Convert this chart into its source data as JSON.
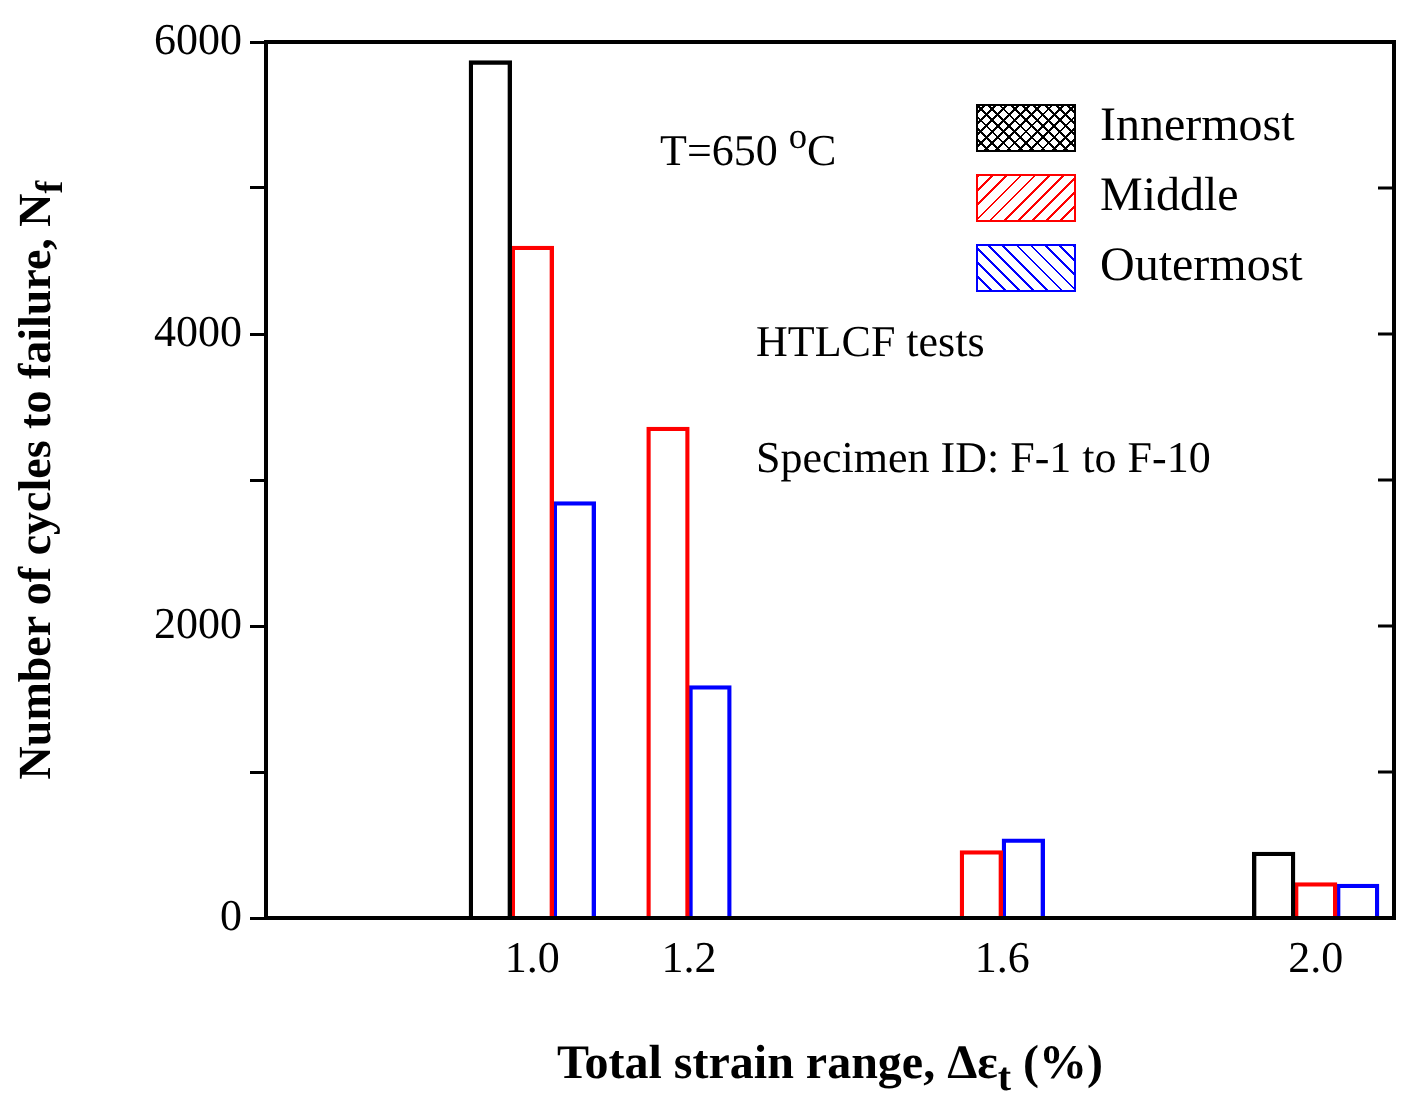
{
  "chart_data": {
    "type": "bar",
    "xlabel": "Total strain range, Δε$_{t}$ (%)",
    "ylabel": "Number of cycles to failure, N$_{f}$",
    "x": [
      1.0,
      1.2,
      1.6,
      2.0
    ],
    "series": [
      {
        "name": "Innermost",
        "color": "#000000",
        "values": [
          5870,
          null,
          null,
          450
        ]
      },
      {
        "name": "Middle",
        "color": "#ff0000",
        "values": [
          4600,
          3360,
          460,
          240
        ]
      },
      {
        "name": "Outermost",
        "color": "#0000ff",
        "values": [
          2850,
          1590,
          540,
          230
        ]
      }
    ],
    "xlim": [
      0.66,
      2.1
    ],
    "xticks": [
      {
        "value": 1.0,
        "label": "1.0"
      },
      {
        "value": 1.2,
        "label": "1.2"
      },
      {
        "value": 1.6,
        "label": "1.6"
      },
      {
        "value": 2.0,
        "label": "2.0"
      }
    ],
    "ylim": [
      0,
      6000
    ],
    "yticks": [
      0,
      {
        "value": 1000,
        "label": null
      },
      2000,
      {
        "value": 3000,
        "label": null
      },
      4000,
      {
        "value": 5000,
        "label": null
      },
      6000
    ],
    "legend": "top right",
    "grid": false,
    "annotations": [
      "T=650 $^{o}$C",
      "HTLCF tests",
      "Specimen ID: F-1 to F-10"
    ]
  }
}
